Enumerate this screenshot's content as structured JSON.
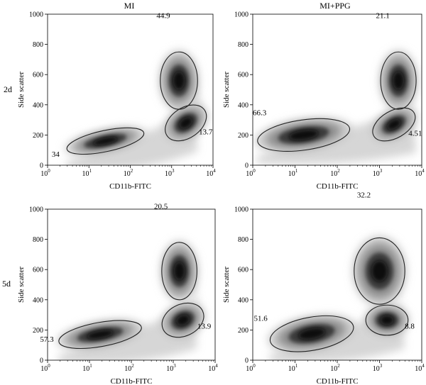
{
  "columns": [
    "MI",
    "MI+PPG"
  ],
  "rows": [
    "2d",
    "5d"
  ],
  "chart_data": [
    {
      "type": "scatter",
      "title": "MI",
      "row_label": "2d",
      "xlabel": "CD11b-FITC",
      "ylabel": "Side scatter",
      "x_scale": "log",
      "xlim": [
        1,
        10000
      ],
      "ylim": [
        0,
        1000
      ],
      "x_tick_labels": [
        "10",
        "10",
        "10",
        "10",
        "10"
      ],
      "x_tick_exponents": [
        "0",
        "1",
        "2",
        "3",
        "4"
      ],
      "y_ticks": [
        "0",
        "200",
        "400",
        "600",
        "800",
        "1000"
      ],
      "gates": [
        {
          "label": "34",
          "cx": 25,
          "cy": 160,
          "rx_dec": 0.95,
          "ry": 70,
          "angle": -12,
          "percent": 34
        },
        {
          "label": "44.9",
          "cx": 1500,
          "cy": 560,
          "rx_dec": 0.45,
          "ry": 190,
          "angle": 0,
          "percent": 44.9
        },
        {
          "label": "13.7",
          "cx": 2200,
          "cy": 280,
          "rx_dec": 0.55,
          "ry": 100,
          "angle": -35,
          "percent": 13.7
        }
      ]
    },
    {
      "type": "scatter",
      "title": "MI+PPG",
      "row_label": "2d",
      "xlabel": "CD11b-FITC",
      "ylabel": "Side scatter",
      "x_scale": "log",
      "xlim": [
        1,
        10000
      ],
      "ylim": [
        0,
        1000
      ],
      "x_tick_labels": [
        "10",
        "10",
        "10",
        "10",
        "10"
      ],
      "x_tick_exponents": [
        "0",
        "1",
        "2",
        "3",
        "4"
      ],
      "y_ticks": [
        "0",
        "200",
        "400",
        "600",
        "800",
        "1000"
      ],
      "gates": [
        {
          "label": "66.3",
          "cx": 16,
          "cy": 200,
          "rx_dec": 1.1,
          "ry": 100,
          "angle": -8,
          "percent": 66.3
        },
        {
          "label": "21.1",
          "cx": 2800,
          "cy": 560,
          "rx_dec": 0.42,
          "ry": 190,
          "angle": 0,
          "percent": 21.1
        },
        {
          "label": "4.51",
          "cx": 2200,
          "cy": 270,
          "rx_dec": 0.55,
          "ry": 90,
          "angle": -30,
          "percent": 4.51
        }
      ]
    },
    {
      "type": "scatter",
      "title": "",
      "row_label": "5d",
      "xlabel": "CD11b-FITC",
      "ylabel": "Side scatter",
      "x_scale": "log",
      "xlim": [
        1,
        10000
      ],
      "ylim": [
        0,
        1000
      ],
      "x_tick_labels": [
        "10",
        "10",
        "10",
        "10",
        "10"
      ],
      "x_tick_exponents": [
        "0",
        "1",
        "2",
        "3",
        "4"
      ],
      "y_ticks": [
        "0",
        "200",
        "400",
        "600",
        "800",
        "1000"
      ],
      "gates": [
        {
          "label": "57.3",
          "cx": 18,
          "cy": 170,
          "rx_dec": 1.0,
          "ry": 80,
          "angle": -10,
          "percent": 57.3
        },
        {
          "label": "20.5",
          "cx": 1400,
          "cy": 590,
          "rx_dec": 0.42,
          "ry": 190,
          "angle": 0,
          "percent": 20.5
        },
        {
          "label": "13.9",
          "cx": 1700,
          "cy": 265,
          "rx_dec": 0.52,
          "ry": 105,
          "angle": -25,
          "percent": 13.9
        }
      ]
    },
    {
      "type": "scatter",
      "title": "",
      "row_label": "5d",
      "xlabel": "CD11b-FITC",
      "ylabel": "Side scatter",
      "x_scale": "log",
      "xlim": [
        1,
        10000
      ],
      "ylim": [
        0,
        1000
      ],
      "x_tick_labels": [
        "10",
        "10",
        "10",
        "10",
        "10"
      ],
      "x_tick_exponents": [
        "0",
        "1",
        "2",
        "3",
        "4"
      ],
      "y_ticks": [
        "0",
        "200",
        "400",
        "600",
        "800",
        "1000"
      ],
      "gates": [
        {
          "label": "51.6",
          "cx": 25,
          "cy": 175,
          "rx_dec": 1.0,
          "ry": 110,
          "angle": -10,
          "percent": 51.6
        },
        {
          "label": "32.2",
          "cx": 1000,
          "cy": 590,
          "rx_dec": 0.6,
          "ry": 220,
          "angle": 0,
          "percent": 32.2
        },
        {
          "label": "8.8",
          "cx": 1500,
          "cy": 265,
          "rx_dec": 0.5,
          "ry": 100,
          "angle": 0,
          "percent": 8.8
        }
      ]
    }
  ]
}
